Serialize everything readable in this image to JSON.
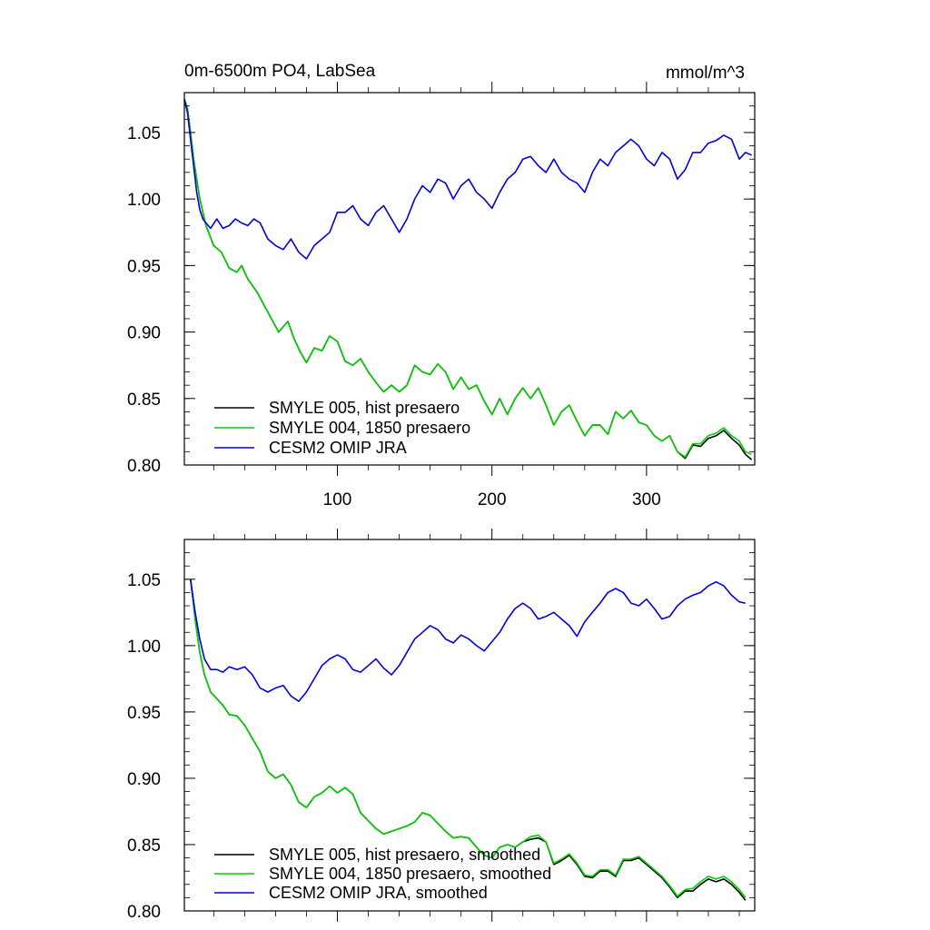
{
  "figure": {
    "title_left": "0m-6500m PO4, LabSea",
    "title_right": "mmol/m^3"
  },
  "colors": {
    "hist": "#000000",
    "ctrl": "#00d000",
    "omip": "#0000dd"
  },
  "chart_data": [
    {
      "type": "line",
      "title": "0m-6500m PO4, LabSea",
      "units": "mmol/m^3",
      "xlim": [
        1,
        370
      ],
      "ylim": [
        0.8,
        1.08
      ],
      "xticks": [
        100,
        200,
        300
      ],
      "xtick_labels": [
        "100",
        "200",
        "300"
      ],
      "yticks": [
        0.8,
        0.85,
        0.9,
        0.95,
        1.0,
        1.05
      ],
      "ytick_labels": [
        "0.80",
        "0.85",
        "0.90",
        "0.95",
        "1.00",
        "1.05"
      ],
      "legend_position": "bottom-left",
      "series": [
        {
          "name": "SMYLE 005, hist presaero",
          "color": "#000000",
          "x": [
            1,
            3,
            5,
            7,
            9,
            11,
            13,
            15,
            20,
            25,
            30,
            35,
            38,
            42,
            48,
            55,
            62,
            68,
            72,
            76,
            80,
            85,
            90,
            95,
            100,
            105,
            110,
            115,
            120,
            125,
            130,
            135,
            140,
            145,
            150,
            155,
            160,
            165,
            170,
            175,
            180,
            185,
            190,
            195,
            200,
            205,
            210,
            215,
            220,
            225,
            230,
            235,
            240,
            245,
            250,
            255,
            260,
            265,
            270,
            275,
            280,
            285,
            290,
            295,
            300,
            305,
            310,
            315,
            320,
            325,
            330,
            335,
            340,
            345,
            350,
            355,
            360,
            364,
            368
          ],
          "values": [
            1.075,
            1.068,
            1.05,
            1.03,
            1.015,
            1.0,
            0.99,
            0.98,
            0.965,
            0.96,
            0.948,
            0.945,
            0.95,
            0.94,
            0.93,
            0.915,
            0.9,
            0.908,
            0.895,
            0.885,
            0.877,
            0.888,
            0.886,
            0.897,
            0.893,
            0.878,
            0.875,
            0.88,
            0.87,
            0.862,
            0.855,
            0.86,
            0.855,
            0.86,
            0.875,
            0.87,
            0.868,
            0.876,
            0.87,
            0.857,
            0.866,
            0.857,
            0.86,
            0.848,
            0.838,
            0.85,
            0.838,
            0.85,
            0.858,
            0.85,
            0.858,
            0.845,
            0.83,
            0.84,
            0.845,
            0.833,
            0.822,
            0.83,
            0.83,
            0.823,
            0.84,
            0.835,
            0.841,
            0.832,
            0.83,
            0.822,
            0.818,
            0.822,
            0.81,
            0.805,
            0.815,
            0.814,
            0.82,
            0.822,
            0.826,
            0.82,
            0.815,
            0.808,
            0.804
          ]
        },
        {
          "name": "SMYLE 004, 1850 presaero",
          "color": "#00d000",
          "x": [
            1,
            3,
            5,
            7,
            9,
            11,
            13,
            15,
            20,
            25,
            30,
            35,
            38,
            42,
            48,
            55,
            62,
            68,
            72,
            76,
            80,
            85,
            90,
            95,
            100,
            105,
            110,
            115,
            120,
            125,
            130,
            135,
            140,
            145,
            150,
            155,
            160,
            165,
            170,
            175,
            180,
            185,
            190,
            195,
            200,
            205,
            210,
            215,
            220,
            225,
            230,
            235,
            240,
            245,
            250,
            255,
            260,
            265,
            270,
            275,
            280,
            285,
            290,
            295,
            300,
            305,
            310,
            315,
            320,
            325,
            330,
            335,
            340,
            345,
            350,
            355,
            360,
            364,
            368
          ],
          "values": [
            1.075,
            1.068,
            1.05,
            1.03,
            1.015,
            1.0,
            0.99,
            0.98,
            0.965,
            0.96,
            0.948,
            0.945,
            0.95,
            0.94,
            0.93,
            0.915,
            0.9,
            0.908,
            0.895,
            0.885,
            0.877,
            0.888,
            0.886,
            0.897,
            0.893,
            0.878,
            0.875,
            0.88,
            0.87,
            0.862,
            0.855,
            0.86,
            0.855,
            0.86,
            0.875,
            0.87,
            0.868,
            0.876,
            0.87,
            0.857,
            0.866,
            0.857,
            0.86,
            0.848,
            0.838,
            0.85,
            0.838,
            0.85,
            0.858,
            0.85,
            0.858,
            0.845,
            0.83,
            0.84,
            0.845,
            0.833,
            0.822,
            0.83,
            0.83,
            0.823,
            0.84,
            0.835,
            0.841,
            0.832,
            0.83,
            0.822,
            0.818,
            0.822,
            0.81,
            0.806,
            0.816,
            0.816,
            0.822,
            0.824,
            0.828,
            0.822,
            0.818,
            0.81,
            0.808
          ]
        },
        {
          "name": "CESM2 OMIP JRA",
          "color": "#0000dd",
          "x": [
            1,
            3,
            5,
            7,
            9,
            11,
            13,
            15,
            18,
            22,
            26,
            30,
            34,
            38,
            42,
            46,
            50,
            55,
            60,
            65,
            70,
            75,
            80,
            85,
            90,
            95,
            100,
            105,
            110,
            115,
            120,
            125,
            130,
            135,
            140,
            145,
            150,
            155,
            160,
            165,
            170,
            175,
            180,
            185,
            190,
            195,
            200,
            205,
            210,
            215,
            220,
            225,
            230,
            235,
            240,
            245,
            250,
            255,
            260,
            265,
            270,
            275,
            280,
            285,
            290,
            295,
            300,
            305,
            310,
            315,
            320,
            325,
            330,
            335,
            340,
            345,
            350,
            355,
            360,
            364,
            368
          ],
          "values": [
            1.075,
            1.065,
            1.045,
            1.025,
            1.005,
            0.992,
            0.985,
            0.982,
            0.978,
            0.985,
            0.978,
            0.98,
            0.985,
            0.982,
            0.98,
            0.985,
            0.982,
            0.97,
            0.965,
            0.962,
            0.97,
            0.96,
            0.955,
            0.965,
            0.97,
            0.975,
            0.99,
            0.99,
            0.995,
            0.985,
            0.98,
            0.99,
            0.995,
            0.985,
            0.975,
            0.985,
            1.0,
            1.01,
            1.005,
            1.015,
            1.012,
            1.0,
            1.01,
            1.015,
            1.005,
            1.0,
            0.993,
            1.005,
            1.015,
            1.02,
            1.03,
            1.032,
            1.025,
            1.02,
            1.03,
            1.02,
            1.015,
            1.012,
            1.005,
            1.02,
            1.03,
            1.025,
            1.035,
            1.04,
            1.045,
            1.04,
            1.03,
            1.025,
            1.035,
            1.03,
            1.015,
            1.022,
            1.035,
            1.035,
            1.042,
            1.044,
            1.048,
            1.045,
            1.03,
            1.035,
            1.033
          ]
        }
      ]
    },
    {
      "type": "line",
      "xlim": [
        1,
        370
      ],
      "ylim": [
        0.8,
        1.08
      ],
      "xticks": [
        100,
        200,
        300
      ],
      "xtick_labels": [],
      "yticks": [
        0.8,
        0.85,
        0.9,
        0.95,
        1.0,
        1.05
      ],
      "ytick_labels": [
        "0.80",
        "0.85",
        "0.90",
        "0.95",
        "1.00",
        "1.05"
      ],
      "legend_position": "bottom-left",
      "series": [
        {
          "name": "SMYLE 005, hist presaero, smoothed",
          "color": "#000000",
          "x": [
            5,
            8,
            11,
            14,
            18,
            22,
            26,
            30,
            35,
            40,
            45,
            50,
            55,
            60,
            65,
            70,
            75,
            80,
            85,
            90,
            95,
            100,
            105,
            110,
            115,
            120,
            125,
            130,
            135,
            140,
            145,
            150,
            155,
            160,
            165,
            170,
            175,
            180,
            185,
            190,
            195,
            200,
            205,
            210,
            215,
            220,
            225,
            230,
            235,
            240,
            245,
            250,
            255,
            260,
            265,
            270,
            275,
            280,
            285,
            290,
            295,
            300,
            305,
            310,
            315,
            320,
            325,
            330,
            335,
            340,
            345,
            350,
            355,
            360,
            364
          ],
          "values": [
            1.05,
            1.02,
            0.995,
            0.978,
            0.965,
            0.96,
            0.955,
            0.948,
            0.947,
            0.94,
            0.93,
            0.92,
            0.905,
            0.9,
            0.903,
            0.895,
            0.882,
            0.878,
            0.886,
            0.889,
            0.894,
            0.889,
            0.893,
            0.888,
            0.874,
            0.868,
            0.862,
            0.858,
            0.86,
            0.862,
            0.864,
            0.867,
            0.874,
            0.872,
            0.866,
            0.86,
            0.855,
            0.856,
            0.855,
            0.848,
            0.842,
            0.84,
            0.848,
            0.85,
            0.848,
            0.852,
            0.854,
            0.855,
            0.852,
            0.835,
            0.838,
            0.842,
            0.835,
            0.826,
            0.825,
            0.83,
            0.83,
            0.826,
            0.838,
            0.838,
            0.84,
            0.835,
            0.83,
            0.825,
            0.818,
            0.81,
            0.815,
            0.815,
            0.82,
            0.824,
            0.822,
            0.824,
            0.82,
            0.814,
            0.808
          ]
        },
        {
          "name": "SMYLE 004, 1850 presaero, smoothed",
          "color": "#00d000",
          "x": [
            5,
            8,
            11,
            14,
            18,
            22,
            26,
            30,
            35,
            40,
            45,
            50,
            55,
            60,
            65,
            70,
            75,
            80,
            85,
            90,
            95,
            100,
            105,
            110,
            115,
            120,
            125,
            130,
            135,
            140,
            145,
            150,
            155,
            160,
            165,
            170,
            175,
            180,
            185,
            190,
            195,
            200,
            205,
            210,
            215,
            220,
            225,
            230,
            235,
            240,
            245,
            250,
            255,
            260,
            265,
            270,
            275,
            280,
            285,
            290,
            295,
            300,
            305,
            310,
            315,
            320,
            325,
            330,
            335,
            340,
            345,
            350,
            355,
            360,
            364
          ],
          "values": [
            1.05,
            1.02,
            0.995,
            0.978,
            0.965,
            0.96,
            0.955,
            0.948,
            0.947,
            0.94,
            0.93,
            0.92,
            0.905,
            0.9,
            0.903,
            0.895,
            0.882,
            0.878,
            0.886,
            0.889,
            0.894,
            0.889,
            0.893,
            0.888,
            0.874,
            0.868,
            0.862,
            0.858,
            0.86,
            0.862,
            0.864,
            0.867,
            0.874,
            0.872,
            0.866,
            0.86,
            0.855,
            0.856,
            0.855,
            0.848,
            0.842,
            0.84,
            0.848,
            0.85,
            0.848,
            0.852,
            0.856,
            0.857,
            0.852,
            0.836,
            0.839,
            0.843,
            0.836,
            0.827,
            0.826,
            0.831,
            0.831,
            0.827,
            0.839,
            0.839,
            0.841,
            0.836,
            0.831,
            0.826,
            0.819,
            0.811,
            0.816,
            0.817,
            0.822,
            0.826,
            0.824,
            0.826,
            0.822,
            0.816,
            0.81
          ]
        },
        {
          "name": "CESM2 OMIP JRA, smoothed",
          "color": "#0000dd",
          "x": [
            5,
            8,
            11,
            14,
            18,
            22,
            26,
            30,
            35,
            40,
            45,
            50,
            55,
            60,
            65,
            70,
            75,
            80,
            85,
            90,
            95,
            100,
            105,
            110,
            115,
            120,
            125,
            130,
            135,
            140,
            145,
            150,
            155,
            160,
            165,
            170,
            175,
            180,
            185,
            190,
            195,
            200,
            205,
            210,
            215,
            220,
            225,
            230,
            235,
            240,
            245,
            250,
            255,
            260,
            265,
            270,
            275,
            280,
            285,
            290,
            295,
            300,
            305,
            310,
            315,
            320,
            325,
            330,
            335,
            340,
            345,
            350,
            355,
            360,
            364
          ],
          "values": [
            1.05,
            1.025,
            1.005,
            0.99,
            0.982,
            0.982,
            0.98,
            0.984,
            0.982,
            0.984,
            0.978,
            0.968,
            0.965,
            0.968,
            0.97,
            0.962,
            0.958,
            0.965,
            0.975,
            0.985,
            0.99,
            0.993,
            0.99,
            0.982,
            0.98,
            0.985,
            0.99,
            0.983,
            0.978,
            0.985,
            0.995,
            1.005,
            1.01,
            1.015,
            1.012,
            1.005,
            1.002,
            1.008,
            1.005,
            1.0,
            0.996,
            1.003,
            1.01,
            1.02,
            1.028,
            1.032,
            1.028,
            1.02,
            1.022,
            1.025,
            1.02,
            1.015,
            1.007,
            1.018,
            1.025,
            1.032,
            1.04,
            1.043,
            1.04,
            1.032,
            1.03,
            1.035,
            1.028,
            1.02,
            1.022,
            1.03,
            1.035,
            1.038,
            1.04,
            1.045,
            1.048,
            1.045,
            1.038,
            1.033,
            1.032
          ]
        }
      ]
    }
  ]
}
